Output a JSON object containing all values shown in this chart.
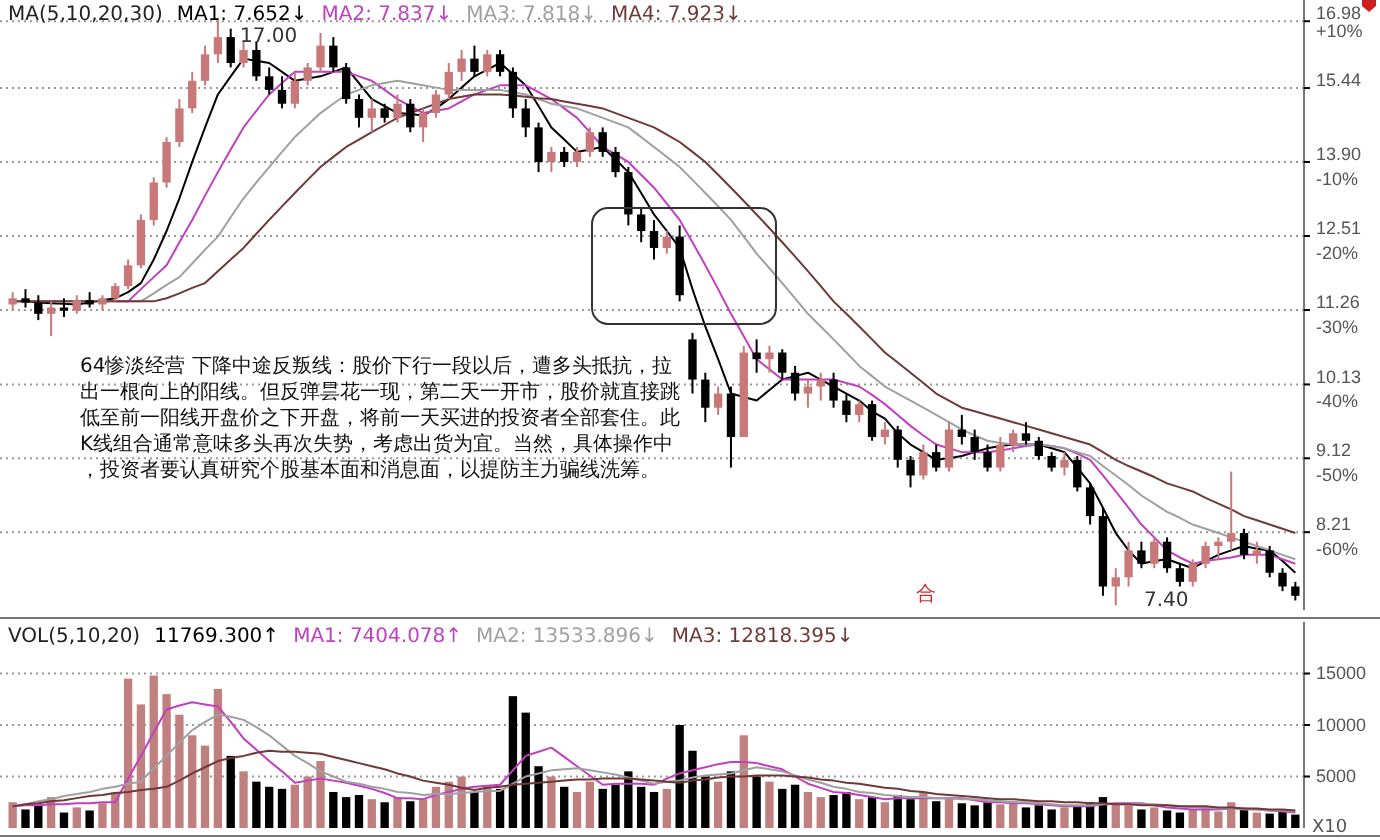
{
  "chart_data": [
    {
      "type": "candlestick",
      "legend_title": "MA(5,10,20,30)",
      "grid": "y",
      "tick_labels": "y",
      "log": "y",
      "categories": [
        null,
        null,
        null,
        null,
        null,
        null,
        null,
        null,
        null,
        null,
        null,
        null,
        null,
        null,
        null,
        null,
        null,
        null,
        null,
        null,
        null,
        null,
        null,
        null,
        null,
        null,
        null,
        null,
        null,
        null,
        null,
        null,
        null,
        null,
        null,
        null,
        null,
        null,
        null,
        null,
        null,
        null,
        null,
        null,
        null,
        null,
        null,
        null,
        null,
        null,
        null,
        null,
        null,
        null,
        null,
        null,
        null,
        null,
        null,
        null,
        null,
        null,
        null,
        null,
        null,
        null,
        null,
        null,
        null,
        null,
        null,
        null,
        null,
        null,
        null,
        null,
        null,
        null,
        null,
        null,
        null,
        null,
        null,
        null,
        null,
        null,
        null,
        null,
        null,
        null,
        null,
        null,
        null,
        null,
        null,
        null,
        null,
        null,
        null,
        null,
        null
      ],
      "ylim": [
        7.35,
        17.5
      ],
      "yticks": [
        16.98,
        15.44,
        {
          "value": 13.9,
          "label": "13.90"
        },
        12.51,
        11.26,
        10.13,
        9.12,
        8.21
      ],
      "y2lim": [
        -70.5,
        11.9
      ],
      "y2ticks": [
        {
          "value": 10,
          "label": "+10%"
        },
        {
          "value": -10,
          "label": "-10%"
        },
        {
          "value": -20,
          "label": "-20%"
        },
        {
          "value": -30,
          "label": "-30%"
        },
        {
          "value": -40,
          "label": "-40%"
        },
        {
          "value": -50,
          "label": "-50%"
        },
        {
          "value": -60,
          "label": "-60%"
        }
      ],
      "ohlc": [
        [
          11.35,
          11.55,
          11.25,
          11.45
        ],
        [
          11.45,
          11.6,
          11.3,
          11.38
        ],
        [
          11.38,
          11.5,
          11.1,
          11.2
        ],
        [
          11.2,
          11.4,
          10.85,
          11.3
        ],
        [
          11.3,
          11.45,
          11.15,
          11.25
        ],
        [
          11.25,
          11.5,
          11.2,
          11.42
        ],
        [
          11.42,
          11.55,
          11.3,
          11.35
        ],
        [
          11.35,
          11.5,
          11.25,
          11.45
        ],
        [
          11.45,
          11.7,
          11.4,
          11.65
        ],
        [
          11.65,
          12.1,
          11.6,
          12.0
        ],
        [
          12.0,
          12.9,
          11.95,
          12.8
        ],
        [
          12.8,
          13.6,
          12.7,
          13.5
        ],
        [
          13.5,
          14.4,
          13.4,
          14.3
        ],
        [
          14.3,
          15.2,
          14.2,
          15.0
        ],
        [
          15.0,
          15.8,
          14.9,
          15.6
        ],
        [
          15.6,
          16.4,
          15.5,
          16.2
        ],
        [
          16.2,
          17.0,
          16.0,
          16.6
        ],
        [
          16.6,
          16.8,
          15.9,
          16.0
        ],
        [
          16.0,
          16.5,
          15.9,
          16.3
        ],
        [
          16.3,
          16.5,
          15.6,
          15.7
        ],
        [
          15.7,
          15.9,
          15.3,
          15.4
        ],
        [
          15.4,
          15.7,
          15.0,
          15.1
        ],
        [
          15.1,
          15.8,
          15.0,
          15.6
        ],
        [
          15.6,
          16.0,
          15.5,
          15.9
        ],
        [
          15.9,
          16.7,
          15.8,
          16.4
        ],
        [
          16.4,
          16.6,
          15.8,
          15.9
        ],
        [
          15.9,
          16.0,
          15.1,
          15.2
        ],
        [
          15.2,
          15.3,
          14.6,
          14.8
        ],
        [
          14.8,
          15.2,
          14.5,
          15.0
        ],
        [
          15.0,
          15.1,
          14.7,
          14.8
        ],
        [
          14.8,
          15.3,
          14.7,
          15.1
        ],
        [
          15.1,
          15.2,
          14.5,
          14.6
        ],
        [
          14.6,
          15.0,
          14.3,
          14.9
        ],
        [
          14.9,
          15.4,
          14.8,
          15.3
        ],
        [
          15.3,
          16.0,
          15.2,
          15.8
        ],
        [
          15.8,
          16.3,
          15.6,
          16.1
        ],
        [
          16.1,
          16.4,
          15.7,
          15.8
        ],
        [
          15.8,
          16.3,
          15.7,
          16.2
        ],
        [
          16.2,
          16.3,
          15.7,
          15.8
        ],
        [
          15.8,
          15.9,
          14.8,
          15.0
        ],
        [
          15.0,
          15.2,
          14.4,
          14.6
        ],
        [
          14.6,
          14.7,
          13.7,
          13.9
        ],
        [
          13.9,
          14.2,
          13.7,
          14.1
        ],
        [
          14.1,
          14.2,
          13.8,
          13.9
        ],
        [
          13.9,
          14.2,
          13.8,
          14.1
        ],
        [
          14.1,
          14.6,
          14.0,
          14.5
        ],
        [
          14.5,
          14.6,
          14.0,
          14.1
        ],
        [
          14.1,
          14.2,
          13.6,
          13.7
        ],
        [
          13.7,
          13.8,
          12.7,
          12.9
        ],
        [
          12.9,
          13.0,
          12.4,
          12.6
        ],
        [
          12.6,
          12.8,
          12.1,
          12.3
        ],
        [
          12.3,
          12.6,
          12.2,
          12.5
        ],
        [
          12.5,
          12.7,
          11.4,
          11.5
        ],
        [
          10.8,
          10.9,
          10.0,
          10.2
        ],
        [
          10.2,
          10.3,
          9.6,
          9.8
        ],
        [
          9.8,
          10.1,
          9.7,
          10.0
        ],
        [
          10.0,
          10.1,
          9.0,
          9.4
        ],
        [
          9.4,
          10.7,
          9.4,
          10.6
        ],
        [
          10.6,
          10.8,
          10.3,
          10.5
        ],
        [
          10.5,
          10.7,
          10.3,
          10.6
        ],
        [
          10.6,
          10.65,
          10.2,
          10.3
        ],
        [
          10.3,
          10.4,
          9.9,
          10.0
        ],
        [
          10.0,
          10.2,
          9.8,
          10.1
        ],
        [
          10.1,
          10.3,
          9.9,
          10.2
        ],
        [
          10.2,
          10.3,
          9.8,
          9.9
        ],
        [
          9.9,
          10.0,
          9.6,
          9.7
        ],
        [
          9.7,
          9.9,
          9.6,
          9.85
        ],
        [
          9.85,
          9.9,
          9.35,
          9.4
        ],
        [
          9.4,
          9.6,
          9.3,
          9.5
        ],
        [
          9.5,
          9.55,
          9.0,
          9.1
        ],
        [
          9.1,
          9.15,
          8.75,
          8.9
        ],
        [
          8.9,
          9.3,
          8.85,
          9.2
        ],
        [
          9.2,
          9.3,
          8.95,
          9.0
        ],
        [
          9.0,
          9.6,
          8.95,
          9.5
        ],
        [
          9.5,
          9.7,
          9.3,
          9.4
        ],
        [
          9.4,
          9.5,
          9.1,
          9.2
        ],
        [
          9.2,
          9.3,
          8.95,
          9.0
        ],
        [
          9.0,
          9.4,
          8.95,
          9.3
        ],
        [
          9.3,
          9.5,
          9.2,
          9.45
        ],
        [
          9.45,
          9.6,
          9.3,
          9.35
        ],
        [
          9.35,
          9.4,
          9.1,
          9.15
        ],
        [
          9.15,
          9.2,
          8.95,
          9.0
        ],
        [
          9.0,
          9.2,
          8.9,
          9.1
        ],
        [
          9.1,
          9.15,
          8.7,
          8.75
        ],
        [
          8.75,
          8.8,
          8.3,
          8.4
        ],
        [
          8.4,
          8.5,
          7.5,
          7.6
        ],
        [
          7.6,
          7.8,
          7.4,
          7.7
        ],
        [
          7.7,
          8.1,
          7.6,
          8.0
        ],
        [
          8.0,
          8.1,
          7.8,
          7.85
        ],
        [
          7.85,
          8.15,
          7.8,
          8.1
        ],
        [
          8.1,
          8.15,
          7.75,
          7.8
        ],
        [
          7.8,
          7.85,
          7.6,
          7.65
        ],
        [
          7.65,
          7.9,
          7.6,
          7.85
        ],
        [
          7.85,
          8.1,
          7.8,
          8.05
        ],
        [
          8.05,
          8.15,
          7.9,
          8.1
        ],
        [
          8.1,
          8.95,
          8.0,
          8.2
        ],
        [
          8.2,
          8.25,
          7.9,
          7.95
        ],
        [
          7.95,
          8.1,
          7.85,
          8.0
        ],
        [
          8.0,
          8.05,
          7.7,
          7.75
        ],
        [
          7.75,
          7.8,
          7.55,
          7.6
        ],
        [
          7.6,
          7.65,
          7.45,
          7.5
        ]
      ],
      "series": [
        {
          "type": "line",
          "name": "MA1: 7.652↓",
          "color": "#000000",
          "values": [
            11.4,
            11.4,
            11.38,
            11.37,
            11.36,
            11.35,
            11.38,
            11.42,
            11.45,
            11.55,
            11.7,
            12.1,
            12.6,
            13.2,
            13.9,
            14.6,
            15.3,
            15.7,
            16.1,
            16.05,
            16.0,
            15.8,
            15.6,
            15.65,
            15.7,
            15.8,
            15.9,
            15.55,
            15.2,
            15.05,
            14.9,
            14.88,
            14.85,
            15.0,
            15.2,
            15.45,
            15.7,
            15.85,
            16.0,
            15.75,
            15.5,
            15.05,
            14.6,
            14.35,
            14.1,
            14.15,
            14.2,
            13.95,
            13.7,
            13.3,
            12.9,
            12.6,
            12.3,
            11.6,
            11.0,
            10.5,
            10.0,
            9.95,
            9.9,
            10.05,
            10.2,
            10.25,
            10.3,
            10.2,
            10.1,
            10.0,
            9.9,
            9.75,
            9.65,
            9.45,
            9.3,
            9.2,
            9.1,
            9.12,
            9.15,
            9.2,
            9.25,
            9.28,
            9.3,
            9.3,
            9.3,
            9.25,
            9.2,
            9.0,
            8.8,
            8.5,
            8.2,
            8.0,
            7.85,
            7.88,
            7.9,
            7.85,
            7.8,
            7.88,
            7.95,
            8.0,
            8.05,
            8.02,
            8.0,
            7.88,
            7.75
          ]
        },
        {
          "type": "line",
          "name": "MA2: 7.837↓",
          "color": "#c040c0",
          "values": [
            null,
            null,
            null,
            null,
            null,
            null,
            null,
            null,
            11.4,
            11.4,
            11.6,
            11.8,
            12.0,
            12.4,
            12.8,
            13.25,
            13.7,
            14.15,
            14.6,
            14.95,
            15.3,
            15.55,
            15.8,
            15.8,
            15.8,
            15.8,
            15.8,
            15.7,
            15.6,
            15.4,
            15.2,
            15.05,
            14.9,
            14.95,
            15.0,
            15.15,
            15.3,
            15.4,
            15.5,
            15.5,
            15.5,
            15.35,
            15.2,
            15.0,
            14.8,
            14.5,
            14.2,
            14.05,
            13.9,
            13.65,
            13.4,
            13.1,
            12.8,
            12.4,
            12.0,
            11.6,
            11.2,
            10.85,
            10.5,
            10.35,
            10.2,
            10.2,
            10.2,
            10.2,
            10.2,
            10.15,
            10.1,
            9.98,
            9.85,
            9.7,
            9.55,
            9.42,
            9.3,
            9.25,
            9.2,
            9.2,
            9.2,
            9.22,
            9.25,
            9.28,
            9.3,
            9.28,
            9.25,
            9.18,
            9.1,
            8.9,
            8.7,
            8.5,
            8.3,
            8.15,
            8.0,
            7.92,
            7.85,
            7.88,
            7.9,
            7.92,
            7.95,
            7.95,
            7.95,
            7.9,
            7.85
          ]
        },
        {
          "type": "line",
          "name": "MA3: 7.818↓",
          "color": "#a0a0a0",
          "values": [
            11.4,
            11.4,
            11.4,
            11.4,
            11.4,
            11.4,
            11.4,
            11.4,
            11.4,
            11.4,
            11.4,
            11.53,
            11.67,
            11.8,
            12.03,
            12.27,
            12.5,
            12.85,
            13.2,
            13.5,
            13.8,
            14.1,
            14.4,
            14.65,
            14.9,
            15.1,
            15.3,
            15.4,
            15.5,
            15.55,
            15.6,
            15.55,
            15.5,
            15.45,
            15.4,
            15.4,
            15.4,
            15.4,
            15.4,
            15.35,
            15.3,
            15.2,
            15.1,
            15.05,
            15.0,
            14.9,
            14.8,
            14.7,
            14.6,
            14.4,
            14.2,
            14.0,
            13.8,
            13.55,
            13.3,
            13.05,
            12.8,
            12.5,
            12.2,
            11.95,
            11.7,
            11.45,
            11.2,
            11.0,
            10.8,
            10.6,
            10.4,
            10.25,
            10.1,
            10.0,
            9.9,
            9.8,
            9.7,
            9.6,
            9.5,
            9.42,
            9.35,
            9.32,
            9.3,
            9.3,
            9.3,
            9.28,
            9.25,
            9.2,
            9.15,
            9.02,
            8.9,
            8.78,
            8.65,
            8.55,
            8.45,
            8.38,
            8.3,
            8.25,
            8.2,
            8.15,
            8.1,
            8.05,
            8.0,
            7.95,
            7.9
          ]
        },
        {
          "type": "line",
          "name": "MA4: 7.923↓",
          "color": "#703838",
          "values": [
            11.4,
            11.4,
            11.4,
            11.4,
            11.4,
            11.4,
            11.4,
            11.4,
            11.4,
            11.4,
            11.4,
            11.4,
            11.45,
            11.53,
            11.62,
            11.7,
            11.9,
            12.1,
            12.3,
            12.55,
            12.8,
            13.05,
            13.3,
            13.55,
            13.8,
            14.0,
            14.2,
            14.35,
            14.5,
            14.65,
            14.8,
            14.9,
            15.0,
            15.1,
            15.2,
            15.25,
            15.3,
            15.3,
            15.3,
            15.28,
            15.25,
            15.22,
            15.2,
            15.15,
            15.1,
            15.05,
            15.0,
            14.9,
            14.8,
            14.7,
            14.6,
            14.45,
            14.3,
            14.1,
            13.9,
            13.65,
            13.4,
            13.15,
            12.9,
            12.65,
            12.4,
            12.15,
            11.9,
            11.65,
            11.4,
            11.2,
            11.0,
            10.8,
            10.6,
            10.45,
            10.3,
            10.15,
            10.0,
            9.9,
            9.8,
            9.75,
            9.7,
            9.65,
            9.6,
            9.55,
            9.5,
            9.45,
            9.4,
            9.35,
            9.3,
            9.2,
            9.1,
            9.02,
            8.95,
            8.88,
            8.8,
            8.75,
            8.7,
            8.62,
            8.55,
            8.48,
            8.4,
            8.35,
            8.3,
            8.25,
            8.2
          ]
        }
      ],
      "annotations": [
        "64惨淡经营 下降中途反叛线：股价下行一段以后，遭多头抵抗，拉出一根向上的阳线。但反弹昙花一现，第二天一开市，股价就直接跳低至前一阳线开盘价之下开盘，将前一天买进的投资者全部套住。此K线组合通常意味多头再次失势，考虑出货为宜。当然，具体操作中，投资者要认真研究个股基本面和消息面，以提防主力骗线洗筹。",
        "17.00",
        "7.40",
        "合"
      ]
    },
    {
      "type": "bar",
      "legend_title": "VOL(5,10,20)",
      "grid": "y",
      "tick_labels": "y",
      "ylabel": "X10",
      "categories": [
        null,
        null,
        null,
        null,
        null,
        null,
        null,
        null,
        null,
        null,
        null,
        null,
        null,
        null,
        null,
        null,
        null,
        null,
        null,
        null,
        null,
        null,
        null,
        null,
        null,
        null,
        null,
        null,
        null,
        null,
        null,
        null,
        null,
        null,
        null,
        null,
        null,
        null,
        null,
        null,
        null,
        null,
        null,
        null,
        null,
        null,
        null,
        null,
        null,
        null,
        null,
        null,
        null,
        null,
        null,
        null,
        null,
        null,
        null,
        null,
        null,
        null,
        null,
        null,
        null,
        null,
        null,
        null,
        null,
        null,
        null,
        null,
        null,
        null,
        null,
        null,
        null,
        null,
        null,
        null,
        null,
        null,
        null,
        null,
        null,
        null,
        null,
        null,
        null,
        null,
        null,
        null,
        null,
        null,
        null,
        null,
        null,
        null,
        null,
        null,
        null
      ],
      "ylim": [
        0,
        20000
      ],
      "yticks": [
        15000,
        10000,
        5000
      ],
      "series": [
        {
          "name": "11769.300↑",
          "color": "#000000",
          "values": [
            2500,
            1800,
            2200,
            3000,
            1500,
            2000,
            1700,
            2400,
            3500,
            14500,
            12000,
            14800,
            13000,
            11000,
            9000,
            8000,
            13500,
            7000,
            5500,
            4500,
            4000,
            3800,
            4200,
            5000,
            6500,
            3500,
            3000,
            3200,
            2800,
            2500,
            3000,
            2600,
            2800,
            4000,
            4500,
            5000,
            3500,
            4000,
            3800,
            12800,
            11200,
            6000,
            5000,
            4000,
            3500,
            4500,
            3800,
            4200,
            5500,
            4000,
            3500,
            3800,
            10000,
            7500,
            5000,
            4500,
            5500,
            9000,
            5000,
            4500,
            3800,
            4200,
            3500,
            3000,
            3200,
            3500,
            2800,
            3000,
            2500,
            3200,
            2800,
            3500,
            2600,
            3000,
            2400,
            2200,
            2500,
            2300,
            2600,
            2000,
            2200,
            1800,
            2000,
            2100,
            2500,
            3000,
            2400,
            2200,
            1800,
            2000,
            1700,
            1500,
            1800,
            2000,
            1600,
            2500,
            1800,
            1500,
            1400,
            1600,
            1300
          ],
          "colors": [
            "#c08080",
            "#000000",
            "#000000",
            "#c08080",
            "#000000",
            "#c08080",
            "#000000",
            "#c08080",
            "#c08080",
            "#c08080",
            "#c08080",
            "#c08080",
            "#c08080",
            "#c08080",
            "#c08080",
            "#c08080",
            "#c08080",
            "#000000",
            "#c08080",
            "#000000",
            "#000000",
            "#000000",
            "#c08080",
            "#c08080",
            "#c08080",
            "#000000",
            "#000000",
            "#000000",
            "#c08080",
            "#000000",
            "#c08080",
            "#000000",
            "#c08080",
            "#c08080",
            "#c08080",
            "#c08080",
            "#000000",
            "#c08080",
            "#000000",
            "#000000",
            "#000000",
            "#000000",
            "#c08080",
            "#000000",
            "#c08080",
            "#c08080",
            "#000000",
            "#000000",
            "#000000",
            "#000000",
            "#000000",
            "#c08080",
            "#000000",
            "#000000",
            "#000000",
            "#c08080",
            "#000000",
            "#c08080",
            "#000000",
            "#c08080",
            "#000000",
            "#000000",
            "#c08080",
            "#c08080",
            "#000000",
            "#000000",
            "#c08080",
            "#000000",
            "#c08080",
            "#000000",
            "#000000",
            "#c08080",
            "#000000",
            "#c08080",
            "#000000",
            "#000000",
            "#000000",
            "#c08080",
            "#c08080",
            "#000000",
            "#000000",
            "#000000",
            "#c08080",
            "#000000",
            "#000000",
            "#000000",
            "#c08080",
            "#c08080",
            "#000000",
            "#c08080",
            "#000000",
            "#000000",
            "#c08080",
            "#c08080",
            "#c08080",
            "#c08080",
            "#000000",
            "#c08080",
            "#000000",
            "#000000",
            "#000000"
          ]
        },
        {
          "type": "line",
          "name": "MA1: 7404.078↑",
          "color": "#c040c0",
          "values": [
            2100,
            2200,
            2200,
            2300,
            2300,
            2400,
            2400,
            2500,
            2500,
            4800,
            7000,
            9300,
            11500,
            11900,
            12200,
            12000,
            11800,
            10300,
            8700,
            7600,
            6500,
            5500,
            4400,
            4600,
            4800,
            4600,
            4400,
            4100,
            3800,
            3400,
            2900,
            2900,
            2800,
            3200,
            3500,
            3800,
            4000,
            4100,
            4200,
            5600,
            7000,
            7400,
            7800,
            6900,
            6000,
            5100,
            4200,
            4300,
            4300,
            4300,
            4200,
            4800,
            5300,
            5600,
            5900,
            6200,
            6400,
            6400,
            6300,
            6000,
            5700,
            5000,
            4300,
            3900,
            3500,
            3400,
            3200,
            3000,
            2800,
            2900,
            2900,
            2900,
            2900,
            2900,
            2900,
            2700,
            2500,
            2500,
            2400,
            2400,
            2300,
            2200,
            2100,
            2100,
            2100,
            2300,
            2400,
            2400,
            2400,
            2200,
            2000,
            1900,
            1800,
            1800,
            1800,
            1900,
            1900,
            1800,
            1700,
            1600,
            1500
          ]
        },
        {
          "type": "line",
          "name": "MA2: 13533.896↓",
          "color": "#a0a0a0",
          "values": [
            2100,
            2300,
            2600,
            2800,
            3100,
            3300,
            3500,
            3800,
            4000,
            4300,
            4500,
            5800,
            7000,
            8300,
            9500,
            10300,
            11000,
            10800,
            10500,
            9800,
            9000,
            8000,
            7000,
            6300,
            5500,
            5000,
            4500,
            4300,
            4000,
            3800,
            3500,
            3400,
            3200,
            3300,
            3300,
            3400,
            3500,
            3600,
            3600,
            4300,
            5000,
            5300,
            5600,
            5700,
            5800,
            5600,
            5400,
            5200,
            4900,
            4600,
            4300,
            4500,
            4600,
            4900,
            5100,
            5200,
            5300,
            5600,
            5900,
            5700,
            5500,
            5100,
            4700,
            4400,
            4000,
            3800,
            3500,
            3400,
            3200,
            3100,
            3000,
            3000,
            2900,
            2900,
            2800,
            2800,
            2700,
            2600,
            2500,
            2500,
            2400,
            2300,
            2200,
            2200,
            2200,
            2300,
            2300,
            2300,
            2300,
            2300,
            2200,
            2100,
            2000,
            2000,
            1900,
            1900,
            1800,
            1800,
            1700,
            1700,
            1600
          ]
        },
        {
          "type": "line",
          "name": "MA3: 12818.395↓",
          "color": "#703838",
          "values": [
            2100,
            2300,
            2400,
            2600,
            2700,
            2900,
            3100,
            3200,
            3400,
            3500,
            3700,
            3800,
            4000,
            4600,
            5300,
            5900,
            6500,
            6800,
            7000,
            7300,
            7500,
            7400,
            7400,
            7300,
            7200,
            6900,
            6600,
            6300,
            6000,
            5700,
            5300,
            5000,
            4600,
            4400,
            4200,
            3900,
            3700,
            3900,
            4000,
            4200,
            4300,
            4400,
            4500,
            4600,
            4700,
            4700,
            4800,
            4800,
            4800,
            4700,
            4600,
            4500,
            4400,
            4600,
            4700,
            4900,
            5000,
            5000,
            5100,
            5100,
            5100,
            5000,
            4900,
            4700,
            4600,
            4400,
            4300,
            4100,
            3900,
            3800,
            3600,
            3500,
            3300,
            3200,
            3100,
            3000,
            2900,
            2800,
            2800,
            2700,
            2600,
            2600,
            2500,
            2500,
            2400,
            2400,
            2300,
            2300,
            2200,
            2200,
            2200,
            2100,
            2100,
            2100,
            2000,
            2000,
            1900,
            1900,
            1800,
            1800,
            1700
          ]
        }
      ]
    }
  ]
}
